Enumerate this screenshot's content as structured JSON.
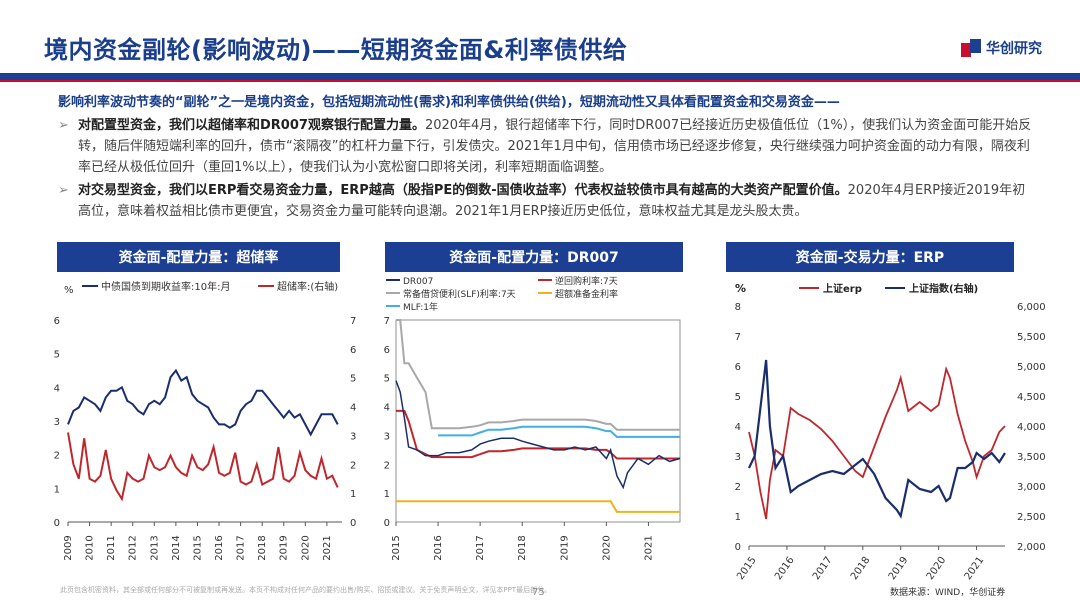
{
  "header": {
    "title": "境内资金副轮(影响波动)——短期资金面&利率债供给",
    "logo_text": "华创研究"
  },
  "intro": {
    "lead": "影响利率波动节奏的“副轮”之一是境内资金，包括短期流动性(需求)和利率债供给(供给)，短期流动性又具体看配置资金和交易资金——",
    "bullets": [
      {
        "bold": "对配置型资金，我们以超储率和DR007观察银行配置力量。",
        "text": "2020年4月，银行超储率下行，同时DR007已经接近历史极值低位（1%），使我们认为资金面可能开始反转，随后伴随短端利率的回升，债市“滚隔夜”的杠杆力量下行，引发债灾。2021年1月中旬，信用债市场已经逐步修复，央行继续强力呵护资金面的动力有限，隔夜利率已经从极低位回升（重回1%以上），使我们认为小宽松窗口即将关闭，利率短期面临调整。"
      },
      {
        "bold": "对交易型资金，我们以ERP看交易资金力量，ERP越高（股指PE的倒数-国债收益率）代表权益较债市具有越高的大类资产配置价值。",
        "text": "2020年4月ERP接近2019年初高位，意味着权益相比债市更便宜，交易资金力量可能转向退潮。2021年1月ERP接近历史低位，意味权益尤其是龙头股太贵。"
      }
    ],
    "bullet_mark": "➢"
  },
  "footer": {
    "disclaimer": "此页包含机密资料，其全部或任何部分不可被复制或再发送。本页不构成对任何产品的要约出售/购买、招揽或建议。关于免责声明全文，详见本PPT最后部分。",
    "page_number": "75",
    "source": "数据来源：WIND，华创证券"
  },
  "chart_data": [
    {
      "type": "line",
      "heading": "资金面-配置力量：超储率",
      "unit_left": "%",
      "xlabel": "",
      "x": [
        2009.0,
        2009.25,
        2009.5,
        2009.75,
        2010.0,
        2010.25,
        2010.5,
        2010.75,
        2011.0,
        2011.25,
        2011.5,
        2011.75,
        2012.0,
        2012.25,
        2012.5,
        2012.75,
        2013.0,
        2013.25,
        2013.5,
        2013.75,
        2014.0,
        2014.25,
        2014.5,
        2014.75,
        2015.0,
        2015.25,
        2015.5,
        2015.75,
        2016.0,
        2016.25,
        2016.5,
        2016.75,
        2017.0,
        2017.25,
        2017.5,
        2017.75,
        2018.0,
        2018.25,
        2018.5,
        2018.75,
        2019.0,
        2019.25,
        2019.5,
        2019.75,
        2020.0,
        2020.25,
        2020.5,
        2020.75,
        2021.0,
        2021.25,
        2021.5
      ],
      "x_ticks": [
        "2009",
        "2010",
        "2011",
        "2012",
        "2013",
        "2014",
        "2015",
        "2016",
        "2017",
        "2018",
        "2019",
        "2020",
        "2021"
      ],
      "ylim_left": [
        0,
        6
      ],
      "yticks_left": [
        "0",
        "1",
        "2",
        "3",
        "4",
        "5",
        "6"
      ],
      "ylim_right": [
        0,
        7
      ],
      "yticks_right": [
        "0",
        "1",
        "2",
        "3",
        "4",
        "5",
        "6",
        "7"
      ],
      "series": [
        {
          "name": "中债国债到期收益率:10年:月",
          "color": "#1a2e6e",
          "axis": "left",
          "values": [
            2.9,
            3.3,
            3.4,
            3.7,
            3.6,
            3.5,
            3.3,
            3.7,
            3.9,
            3.9,
            4.0,
            3.6,
            3.5,
            3.3,
            3.2,
            3.5,
            3.6,
            3.5,
            3.7,
            4.3,
            4.5,
            4.2,
            4.3,
            3.8,
            3.6,
            3.5,
            3.4,
            3.1,
            2.9,
            2.9,
            2.8,
            2.9,
            3.3,
            3.5,
            3.6,
            3.9,
            3.9,
            3.7,
            3.5,
            3.3,
            3.1,
            3.3,
            3.1,
            3.2,
            2.9,
            2.6,
            2.9,
            3.2,
            3.2,
            3.2,
            2.9
          ]
        },
        {
          "name": "超储率:(右轴)",
          "color": "#c0272d",
          "axis": "right",
          "values": [
            3.1,
            2.0,
            1.5,
            2.9,
            1.5,
            1.4,
            1.6,
            2.5,
            1.5,
            1.1,
            0.8,
            1.7,
            1.5,
            1.4,
            1.5,
            2.3,
            1.9,
            1.8,
            1.9,
            2.3,
            1.9,
            1.7,
            1.6,
            2.3,
            1.9,
            1.8,
            2.0,
            2.6,
            1.7,
            1.6,
            1.7,
            2.4,
            1.4,
            1.3,
            1.4,
            2.0,
            1.3,
            1.4,
            1.5,
            2.6,
            1.5,
            1.4,
            1.6,
            2.4,
            1.8,
            1.6,
            1.5,
            2.2,
            1.5,
            1.6,
            1.2
          ]
        }
      ]
    },
    {
      "type": "line",
      "heading": "资金面-配置力量：DR007",
      "xlabel": "",
      "x": [
        2015.0,
        2015.1,
        2015.2,
        2015.3,
        2015.5,
        2015.7,
        2015.85,
        2016.0,
        2016.2,
        2016.5,
        2016.8,
        2017.0,
        2017.2,
        2017.5,
        2017.8,
        2018.0,
        2018.25,
        2018.5,
        2018.75,
        2019.0,
        2019.25,
        2019.5,
        2019.75,
        2020.0,
        2020.1,
        2020.25,
        2020.4,
        2020.5,
        2020.75,
        2021.0,
        2021.25,
        2021.5,
        2021.75
      ],
      "x_ticks": [
        "2015",
        "2016",
        "2017",
        "2018",
        "2019",
        "2020",
        "2021"
      ],
      "ylim": [
        0,
        7
      ],
      "yticks": [
        "0",
        "1",
        "2",
        "3",
        "4",
        "5",
        "6",
        "7"
      ],
      "series": [
        {
          "name": "DR007",
          "color": "#1a2e6e",
          "values": [
            4.9,
            4.5,
            3.6,
            2.6,
            2.5,
            2.3,
            2.3,
            2.3,
            2.4,
            2.4,
            2.5,
            2.7,
            2.8,
            2.9,
            2.9,
            2.8,
            2.7,
            2.6,
            2.5,
            2.5,
            2.6,
            2.5,
            2.6,
            2.2,
            2.5,
            1.6,
            1.2,
            1.7,
            2.2,
            2.0,
            2.3,
            2.1,
            2.2
          ]
        },
        {
          "name": "逆回购利率:7天",
          "color": "#c0272d",
          "values": [
            3.85,
            3.85,
            3.85,
            3.5,
            2.5,
            2.35,
            2.25,
            2.25,
            2.25,
            2.25,
            2.25,
            2.35,
            2.45,
            2.45,
            2.5,
            2.55,
            2.55,
            2.55,
            2.55,
            2.55,
            2.55,
            2.55,
            2.5,
            2.5,
            2.4,
            2.2,
            2.2,
            2.2,
            2.2,
            2.2,
            2.2,
            2.2,
            2.2
          ]
        },
        {
          "name": "常备借贷便利(SLF)利率:7天",
          "color": "#a8a8a8",
          "values": [
            7.0,
            7.0,
            5.5,
            5.5,
            5.0,
            4.5,
            3.25,
            3.25,
            3.25,
            3.25,
            3.3,
            3.35,
            3.45,
            3.45,
            3.5,
            3.55,
            3.55,
            3.55,
            3.55,
            3.55,
            3.55,
            3.55,
            3.5,
            3.4,
            3.4,
            3.2,
            3.2,
            3.2,
            3.2,
            3.2,
            3.2,
            3.2,
            3.2
          ]
        },
        {
          "name": "超额准备金利率",
          "color": "#f0b21a",
          "values": [
            0.72,
            0.72,
            0.72,
            0.72,
            0.72,
            0.72,
            0.72,
            0.72,
            0.72,
            0.72,
            0.72,
            0.72,
            0.72,
            0.72,
            0.72,
            0.72,
            0.72,
            0.72,
            0.72,
            0.72,
            0.72,
            0.72,
            0.72,
            0.72,
            0.72,
            0.35,
            0.35,
            0.35,
            0.35,
            0.35,
            0.35,
            0.35,
            0.35
          ]
        },
        {
          "name": "MLF:1年",
          "color": "#3fb0e0",
          "values": [
            null,
            null,
            null,
            null,
            null,
            null,
            null,
            3.0,
            3.0,
            3.0,
            3.0,
            3.1,
            3.2,
            3.2,
            3.25,
            3.3,
            3.3,
            3.3,
            3.3,
            3.3,
            3.3,
            3.3,
            3.25,
            3.15,
            3.15,
            2.95,
            2.95,
            2.95,
            2.95,
            2.95,
            2.95,
            2.95,
            2.95
          ]
        }
      ]
    },
    {
      "type": "line",
      "heading": "资金面-交易力量：ERP",
      "unit_left": "%",
      "xlabel": "",
      "x": [
        2015.0,
        2015.15,
        2015.3,
        2015.45,
        2015.55,
        2015.7,
        2015.9,
        2016.1,
        2016.3,
        2016.6,
        2016.9,
        2017.2,
        2017.5,
        2017.8,
        2018.0,
        2018.3,
        2018.6,
        2018.9,
        2019.0,
        2019.2,
        2019.5,
        2019.8,
        2020.0,
        2020.2,
        2020.3,
        2020.5,
        2020.7,
        2020.9,
        2021.0,
        2021.2,
        2021.4,
        2021.6,
        2021.75
      ],
      "x_ticks": [
        "2015",
        "2016",
        "2017",
        "2018",
        "2019",
        "2020",
        "2021"
      ],
      "ylim_left": [
        0,
        8
      ],
      "yticks_left": [
        "0",
        "1",
        "2",
        "3",
        "4",
        "5",
        "6",
        "7",
        "8"
      ],
      "ylim_right": [
        2000,
        6000
      ],
      "yticks_right": [
        "2,000",
        "2,500",
        "3,000",
        "3,500",
        "4,000",
        "4,500",
        "5,000",
        "5,500",
        "6,000"
      ],
      "series": [
        {
          "name": "上证erp",
          "color": "#c0272d",
          "axis": "left",
          "values": [
            3.8,
            3.0,
            1.8,
            0.9,
            2.2,
            3.2,
            3.0,
            4.6,
            4.4,
            4.2,
            3.9,
            3.5,
            3.0,
            2.5,
            2.3,
            3.3,
            4.3,
            5.2,
            5.6,
            4.5,
            4.8,
            4.5,
            4.7,
            5.9,
            5.6,
            4.4,
            3.5,
            2.8,
            2.3,
            3.0,
            3.2,
            3.8,
            4.0
          ]
        },
        {
          "name": "上证指数(右轴)",
          "color": "#1a2e6e",
          "axis": "right",
          "values": [
            3300,
            3500,
            4300,
            5100,
            4000,
            3300,
            3500,
            2900,
            3000,
            3100,
            3200,
            3250,
            3200,
            3350,
            3450,
            3200,
            2800,
            2600,
            2500,
            3100,
            2950,
            2900,
            3000,
            2750,
            2800,
            3300,
            3300,
            3400,
            3550,
            3450,
            3550,
            3400,
            3550
          ]
        }
      ]
    }
  ]
}
